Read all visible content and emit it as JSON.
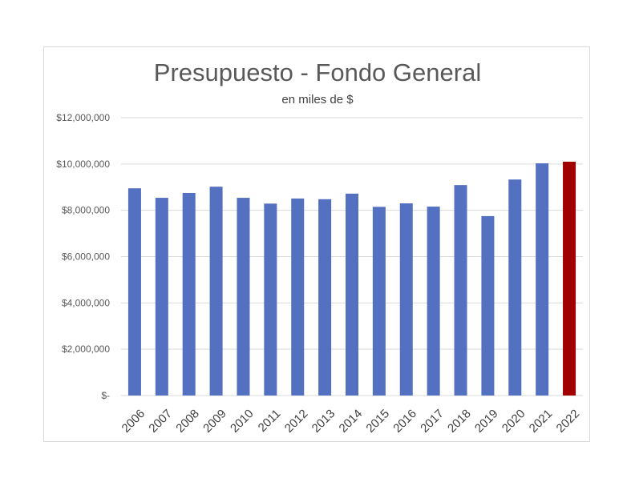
{
  "chart_data": {
    "type": "bar",
    "title": "Presupuesto - Fondo General",
    "subtitle": "en miles de $",
    "xlabel": "",
    "ylabel": "",
    "ylim": [
      0,
      12000000
    ],
    "yticks": [
      {
        "value": 0,
        "label": "$-"
      },
      {
        "value": 2000000,
        "label": "$2,000,000"
      },
      {
        "value": 4000000,
        "label": "$4,000,000"
      },
      {
        "value": 6000000,
        "label": "$6,000,000"
      },
      {
        "value": 8000000,
        "label": "$8,000,000"
      },
      {
        "value": 10000000,
        "label": "$10,000,000"
      },
      {
        "value": 12000000,
        "label": "$12,000,000"
      }
    ],
    "grid": true,
    "categories": [
      "2006",
      "2007",
      "2008",
      "2009",
      "2010",
      "2011",
      "2012",
      "2013",
      "2014",
      "2015",
      "2016",
      "2017",
      "2018",
      "2019",
      "2020",
      "2021",
      "2022"
    ],
    "values": [
      8950000,
      8540000,
      8750000,
      9020000,
      8540000,
      8290000,
      8510000,
      8480000,
      8720000,
      8150000,
      8300000,
      8160000,
      9090000,
      7750000,
      9330000,
      10030000,
      10100000
    ],
    "colors": {
      "default": "#5470c1",
      "highlight": "#a00000",
      "highlight_category": "2022"
    }
  }
}
